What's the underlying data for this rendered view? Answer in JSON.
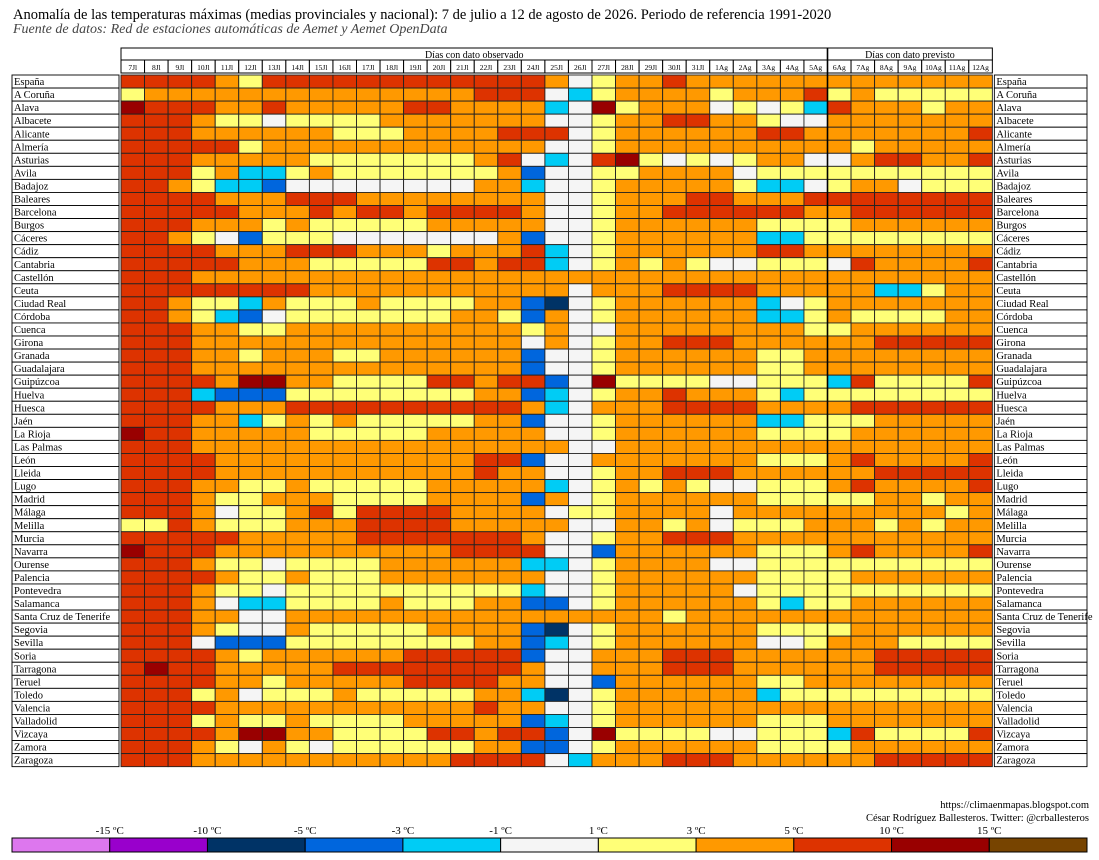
{
  "title": "Anomalía de las temperaturas máximas (medias provinciales y nacional): 7 de julio a 12 de agosto de 2026. Periodo de referencia 1991-2020",
  "subtitle": "Fuente de datos: Red de estaciones automáticas de Aemet y Aemet OpenData",
  "credit": {
    "url": "https://climaenmapas.blogspot.com",
    "author": "César Rodríguez Ballesteros. Twitter: @crballesteros"
  },
  "legend": {
    "labels": [
      "-15 ºC",
      "-10 ºC",
      "-5 ºC",
      "-3 ºC",
      "-1 ºC",
      "1 ºC",
      "3 ºC",
      "5 ºC",
      "10 ºC",
      "15 ºC"
    ],
    "colors": [
      "#dd77ee",
      "#9900cc",
      "#003366",
      "#0066dd",
      "#00ccf5",
      "#f5f5f5",
      "#ffff77",
      "#ff9900",
      "#dd3300",
      "#990000",
      "#774400"
    ]
  },
  "chart_data": {
    "type": "heatmap",
    "group_labels": [
      "Días con dato observado",
      "Días con dato previsto"
    ],
    "observed_days": 30,
    "columns": [
      "7Jl",
      "8Jl",
      "9Jl",
      "10Jl",
      "11Jl",
      "12Jl",
      "13Jl",
      "14Jl",
      "15Jl",
      "16Jl",
      "17Jl",
      "18Jl",
      "19Jl",
      "20Jl",
      "21Jl",
      "22Jl",
      "23Jl",
      "24Jl",
      "25Jl",
      "26Jl",
      "27Jl",
      "28Jl",
      "29Jl",
      "30Jl",
      "31Jl",
      "1Ag",
      "2Ag",
      "3Ag",
      "4Ag",
      "5Ag",
      "6Ag",
      "7Ag",
      "8Ag",
      "9Ag",
      "10Ag",
      "11Ag",
      "12Ag"
    ],
    "rows": [
      "España",
      "A Coruña",
      "Alava",
      "Albacete",
      "Alicante",
      "Almería",
      "Asturias",
      "Avila",
      "Badajoz",
      "Baleares",
      "Barcelona",
      "Burgos",
      "Cáceres",
      "Cádiz",
      "Cantabria",
      "Castellón",
      "Ceuta",
      "Ciudad Real",
      "Córdoba",
      "Cuenca",
      "Girona",
      "Granada",
      "Guadalajara",
      "Guipúzcoa",
      "Huelva",
      "Huesca",
      "Jaén",
      "La Rioja",
      "Las Palmas",
      "León",
      "Lleida",
      "Lugo",
      "Madrid",
      "Málaga",
      "Melilla",
      "Murcia",
      "Navarra",
      "Ourense",
      "Palencia",
      "Pontevedra",
      "Salamanca",
      "Santa Cruz de Tenerife",
      "Segovia",
      "Sevilla",
      "Soria",
      "Tarragona",
      "Teruel",
      "Toledo",
      "Valencia",
      "Valladolid",
      "Vizcaya",
      "Zamora",
      "Zaragoza"
    ],
    "category_colors": {
      "0": "#003366",
      "1": "#0066dd",
      "2": "#00ccf5",
      "3": "#f5f5f5",
      "4": "#ffff77",
      "5": "#ff9900",
      "6": "#dd3300",
      "7": "#990000"
    },
    "category_ranges": {
      "0": "-10 a -5 ºC",
      "1": "-5 a -3 ºC",
      "2": "-3 a -1 ºC",
      "3": "-1 a 1 ºC",
      "4": "1 a 3 ºC",
      "5": "3 a 5 ºC",
      "6": "5 a 10 ºC",
      "7": "10 a 15 ºC"
    },
    "values": [
      "6666546666666666665345565555555555555",
      "4555555555555556663245555455564544444",
      "7666556555556655552374555343426555455",
      "6665443444455555553345566554335555555",
      "6665555554445555666345555556655555556",
      "6666645555555555553345555555555455555",
      "6665555544444445632367434345533566556",
      "6664522454444444513344555534444444444",
      "6654221333333335523345555542234553444",
      "6666555666555555553345556655566666666",
      "6666655565665666653345566666655666666",
      "6665554544444555553345555554444555555",
      "6654314443333333513345555552244444444",
      "6666555666555455562345555556655555555",
      "6666655544444665662345454334443655556",
      "6665555555555555555555555555555555555",
      "6666666655555555555355566665555522455",
      "6654425444544445510345555552345555555",
      "6654213444444455415345555552245444455",
      "6665544555555555545335555555544555555",
      "6665555555555555535345566655555566666",
      "6665545554455555513345555554455555555",
      "6665555555555555513345555554455555555",
      "6666577554444665661374444334442644446",
      "6662111444444445512345565554244444444",
      "6666555666666666652355566665555666666",
      "6665524545444445513345555552244455555",
      "7665555544444555553345555554444555555",
      "6665555555555555555335555555555555555",
      "6666555555555556613355555554445655556",
      "6666555555555556553345566655555566666",
      "6665544544444555552345454334445655556",
      "6665445554444555515345555554444455455",
      "6665344564666655553445555355555555545",
      "4465444555666655555335545344455545455",
      "6666655555666666653345566655555555555",
      "7666555555555566663315555554445655556",
      "6665443444455555522345555334444444444",
      "6666544544455555553345555554444555555",
      "6665443444444444423345555534444444444",
      "6665322444454445511345555554244555555",
      "6665533555555555555555545555555555555",
      "6665433544444555510345555554444555555",
      "6663111444444445512345555553345554444",
      "6666545555556666613355566655555566666",
      "6766555556666666653355566655555566666",
      "6666554555556666553315555554455555555",
      "6664534445444445520345555552444444444",
      "6666555555555556553345555555555555555",
      "6664544544445555512345555554445555555",
      "6666577554444665661374444334442644446",
      "6665435434444445511345555554444555555",
      "6665555555555566663255566655555566666"
    ]
  }
}
